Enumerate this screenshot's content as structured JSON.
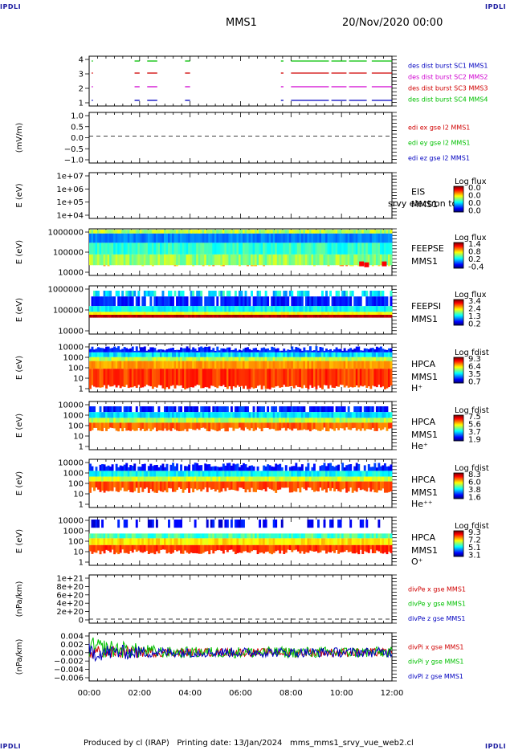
{
  "corner_label": "IPDLI",
  "header": {
    "mission": "MMS1",
    "date": "20/Nov/2020 00:00"
  },
  "footer": {
    "produced_by": "Produced by cl (IRAP)",
    "printing_date": "Printing date: 13/Jan/2024",
    "filename": "mms_mms1_srvy_vue_web2.cl"
  },
  "time_axis": {
    "ticks": [
      "00:00",
      "02:00",
      "04:00",
      "06:00",
      "08:00",
      "10:00",
      "12:00"
    ]
  },
  "colors": {
    "red": "#d00000",
    "green": "#00c000",
    "blue": "#0000c0",
    "magenta": "#d000d0"
  },
  "chart_data": [
    {
      "type": "line",
      "name": "burst-availability",
      "ylabel": "",
      "yticks": [
        "4",
        "3",
        "2",
        "1"
      ],
      "legend": [
        {
          "text": "des dist burst SC1 MMS1",
          "color": "#0000c0"
        },
        {
          "text": "des dist burst SC2 MMS2",
          "color": "#d000d0"
        },
        {
          "text": "des dist burst SC3 MMS3",
          "color": "#d00000"
        },
        {
          "text": "des dist burst SC4 MMS4",
          "color": "#00c000"
        }
      ],
      "intervals_hours": [
        [
          0.1,
          0.15
        ],
        [
          1.8,
          2.0
        ],
        [
          2.3,
          2.7
        ],
        [
          3.8,
          4.0
        ],
        [
          7.6,
          7.7
        ],
        [
          8.0,
          9.5
        ],
        [
          9.6,
          10.2
        ],
        [
          10.3,
          11.0
        ],
        [
          11.2,
          12.0
        ]
      ]
    },
    {
      "type": "line",
      "name": "edi-e-field",
      "ylabel": "(mV/m)",
      "yticks": [
        "1.0",
        "0.5",
        "0.0",
        "−0.5",
        "−1.0"
      ],
      "ylim": [
        -1.25,
        1.1
      ],
      "legend": [
        {
          "text": "edi ex gse l2 MMS1",
          "color": "#d00000"
        },
        {
          "text": "edi ey gse l2 MMS1",
          "color": "#00c000"
        },
        {
          "text": "edi ez gse l2 MMS1",
          "color": "#0000c0"
        }
      ],
      "zero_line": true
    },
    {
      "type": "heatmap",
      "name": "eis",
      "ylabel": "E (eV)",
      "yticks": [
        "1e+07",
        "1e+06",
        "1e+05",
        "1e+04"
      ],
      "instrument": [
        "EIS",
        "MMS1"
      ],
      "overlay_text": "srvy electron to",
      "colorbar": {
        "title": "Log flux",
        "ticks": [
          "0.0",
          "0.0",
          "0.0",
          "0.0"
        ]
      },
      "empty": true
    },
    {
      "type": "heatmap",
      "name": "feeps-electron",
      "ylabel": "E (eV)",
      "yticks": [
        "1000000",
        "100000",
        "10000"
      ],
      "instrument": [
        "FEEPSE",
        "MMS1"
      ],
      "colorbar": {
        "title": "Log flux",
        "ticks": [
          "1.4",
          "0.8",
          "0.2",
          "-0.4"
        ]
      }
    },
    {
      "type": "heatmap",
      "name": "feeps-ion",
      "ylabel": "E (eV)",
      "yticks": [
        "1000000",
        "100000",
        "10000"
      ],
      "instrument": [
        "FEEPSI",
        "MMS1"
      ],
      "colorbar": {
        "title": "Log flux",
        "ticks": [
          "3.4",
          "2.4",
          "1.3",
          "0.2"
        ]
      }
    },
    {
      "type": "heatmap",
      "name": "hpca-h",
      "ylabel": "E (eV)",
      "yticks": [
        "10000",
        "1000",
        "100",
        "10",
        "1"
      ],
      "instrument": [
        "HPCA",
        "MMS1",
        "H⁺"
      ],
      "colorbar": {
        "title": "Log fdist",
        "ticks": [
          "9.3",
          "6.4",
          "3.5",
          "0.7"
        ]
      }
    },
    {
      "type": "heatmap",
      "name": "hpca-he",
      "ylabel": "E (eV)",
      "yticks": [
        "10000",
        "1000",
        "100",
        "10",
        "1"
      ],
      "instrument": [
        "HPCA",
        "MMS1",
        "He⁺"
      ],
      "colorbar": {
        "title": "Log fdist",
        "ticks": [
          "7.5",
          "5.6",
          "3.7",
          "1.9"
        ]
      }
    },
    {
      "type": "heatmap",
      "name": "hpca-he2",
      "ylabel": "E (eV)",
      "yticks": [
        "10000",
        "1000",
        "100",
        "10",
        "1"
      ],
      "instrument": [
        "HPCA",
        "MMS1",
        "He⁺⁺"
      ],
      "colorbar": {
        "title": "Log fdist",
        "ticks": [
          "8.3",
          "6.0",
          "3.8",
          "1.6"
        ]
      }
    },
    {
      "type": "heatmap",
      "name": "hpca-o",
      "ylabel": "E (eV)",
      "yticks": [
        "10000",
        "1000",
        "100",
        "10",
        "1"
      ],
      "instrument": [
        "HPCA",
        "MMS1",
        "O⁺"
      ],
      "colorbar": {
        "title": "Log fdist",
        "ticks": [
          "9.3",
          "7.2",
          "5.1",
          "3.1"
        ]
      }
    },
    {
      "type": "line",
      "name": "div-pe",
      "ylabel": "(nPa/km)",
      "yticks": [
        "1e+21",
        "8e+20",
        "6e+20",
        "4e+20",
        "2e+20",
        "0"
      ],
      "legend": [
        {
          "text": "divPe x gse MMS1",
          "color": "#d00000"
        },
        {
          "text": "divPe y gse MMS1",
          "color": "#00c000"
        },
        {
          "text": "divPe z gse MMS1",
          "color": "#0000c0"
        }
      ],
      "zero_line": true
    },
    {
      "type": "line",
      "name": "div-pi",
      "ylabel": "(nPa/km)",
      "yticks": [
        "0.004",
        "0.002",
        "0.000",
        "−0.002",
        "−0.004",
        "−0.006"
      ],
      "ylim": [
        -0.007,
        0.0048
      ],
      "legend": [
        {
          "text": "divPi x gse MMS1",
          "color": "#d00000"
        },
        {
          "text": "divPi y gse MMS1",
          "color": "#00c000"
        },
        {
          "text": "divPi z gse MMS1",
          "color": "#0000c0"
        }
      ]
    }
  ]
}
